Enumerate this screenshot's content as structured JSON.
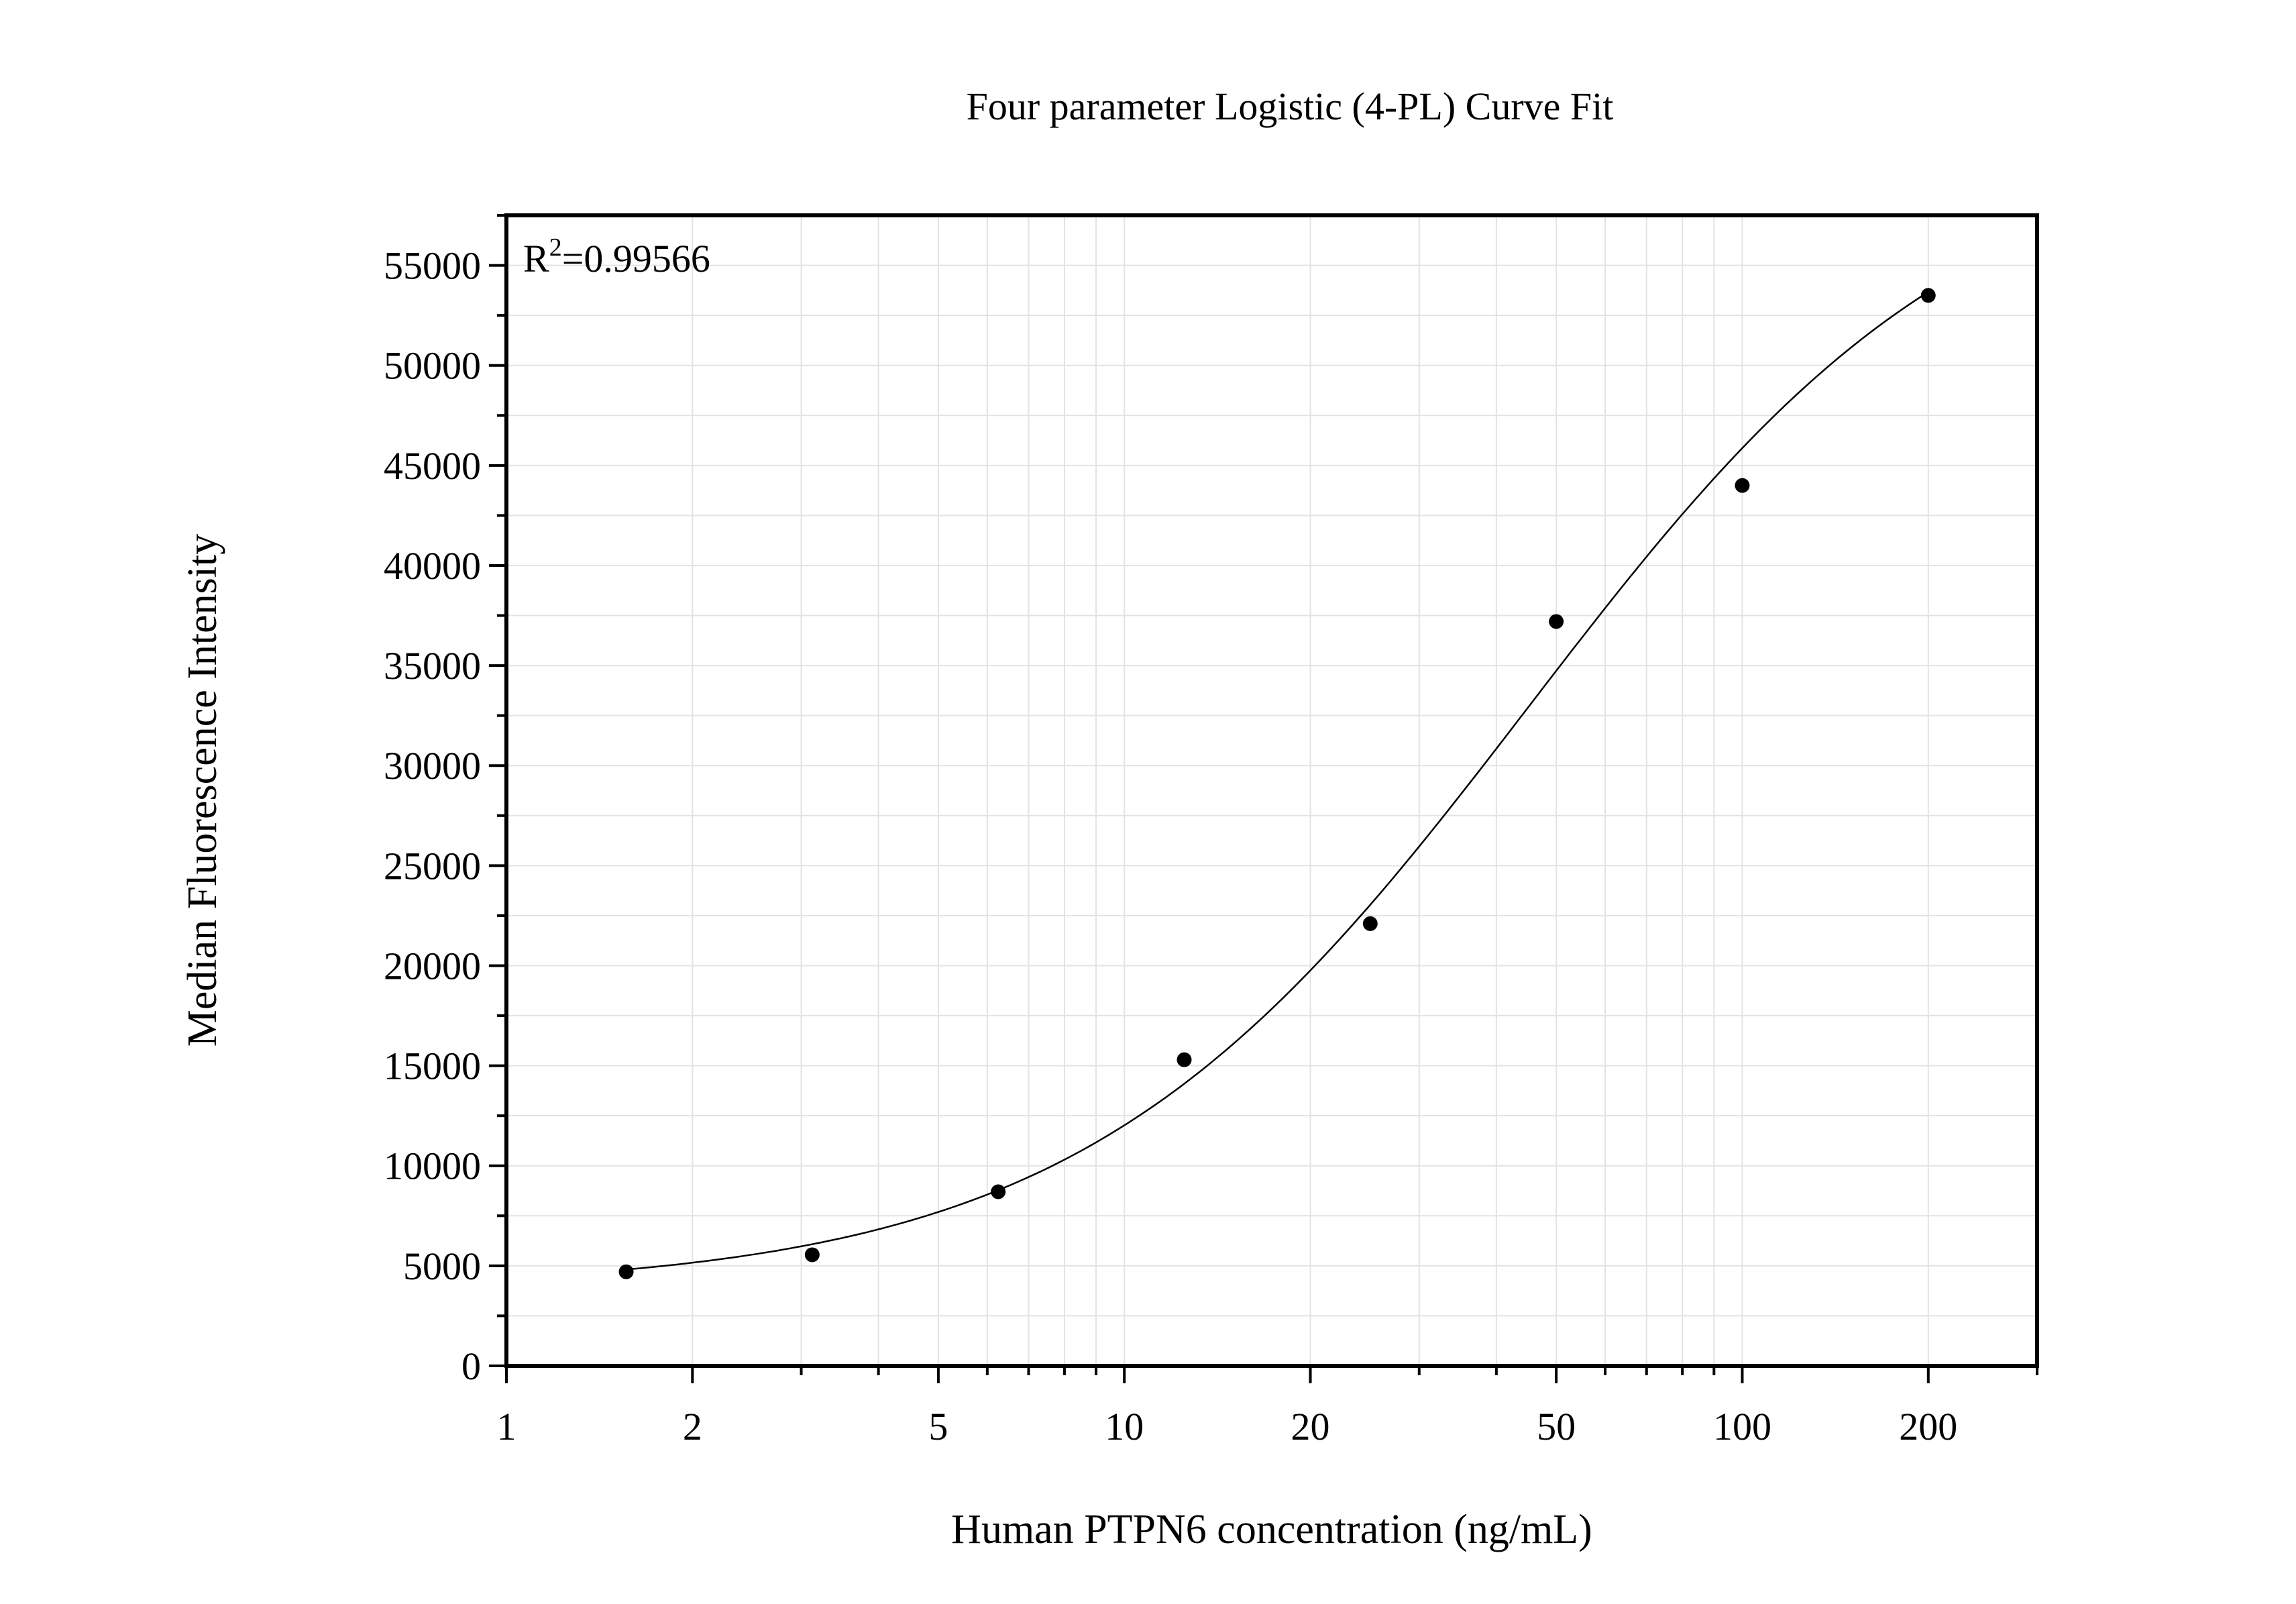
{
  "chart_data": {
    "type": "scatter",
    "title": "Four parameter Logistic (4-PL) Curve Fit",
    "xlabel": "Human PTPN6 concentration (ng/mL)",
    "ylabel": "Median Fluorescence Intensity",
    "x_scale": "log",
    "xlim": [
      1,
      300
    ],
    "ylim": [
      0,
      57500
    ],
    "x_ticks": [
      1,
      2,
      5,
      10,
      20,
      50,
      100,
      200
    ],
    "x_tick_labels": [
      "1",
      "2",
      "5",
      "10",
      "20",
      "50",
      "100",
      "200"
    ],
    "y_ticks": [
      0,
      5000,
      10000,
      15000,
      20000,
      25000,
      30000,
      35000,
      40000,
      45000,
      50000,
      55000
    ],
    "y_tick_labels": [
      "0",
      "5000",
      "10000",
      "15000",
      "20000",
      "25000",
      "30000",
      "35000",
      "40000",
      "45000",
      "50000",
      "55000"
    ],
    "grid": true,
    "annotation": {
      "prefix": "R",
      "superscript": "2",
      "text": "=0.99566"
    },
    "points": {
      "x": [
        1.5625,
        3.125,
        6.25,
        12.5,
        25,
        50,
        100,
        200
      ],
      "y": [
        4700,
        5550,
        8700,
        15300,
        22100,
        37200,
        44000,
        53500
      ]
    },
    "fit_curve": "4-PL",
    "colors": {
      "points": "#000000",
      "curve": "#000000",
      "grid": "#e3e3e3",
      "axes": "#000000"
    }
  }
}
